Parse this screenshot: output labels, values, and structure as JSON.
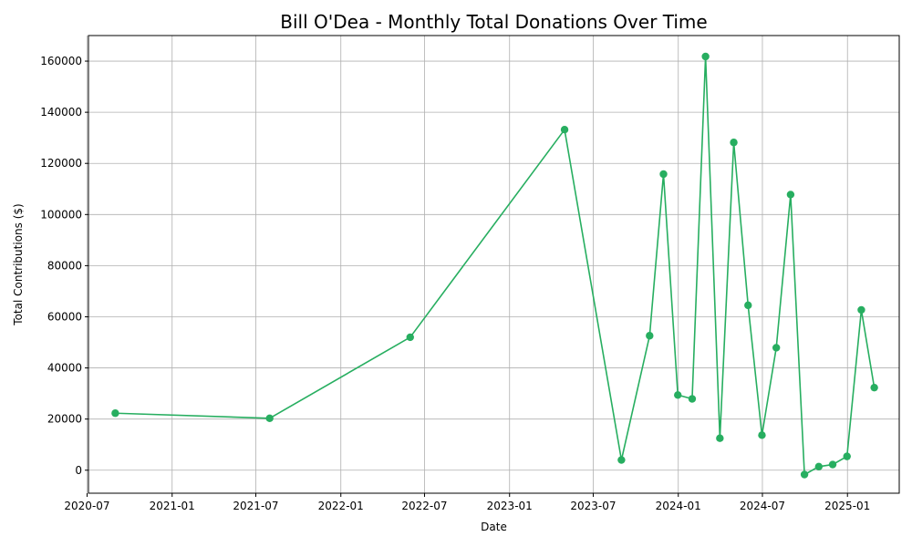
{
  "chart_data": {
    "type": "line",
    "title": "Bill O'Dea - Monthly Total Donations Over Time",
    "xlabel": "Date",
    "ylabel": "Total Contributions ($)",
    "color": "#27ae60",
    "grid": true,
    "xlim": [
      "2020-07-04",
      "2025-04-23"
    ],
    "ylim": [
      -9000,
      170000
    ],
    "x_ticks": [
      "2020-07",
      "2021-01",
      "2021-07",
      "2022-01",
      "2022-07",
      "2023-01",
      "2023-07",
      "2024-01",
      "2024-07",
      "2025-01"
    ],
    "y_ticks": [
      0,
      20000,
      40000,
      60000,
      80000,
      100000,
      120000,
      140000,
      160000
    ],
    "points": [
      {
        "date": "2020-08-31",
        "value": 22300
      },
      {
        "date": "2021-07-31",
        "value": 20300
      },
      {
        "date": "2022-05-31",
        "value": 52000
      },
      {
        "date": "2023-04-30",
        "value": 133200
      },
      {
        "date": "2023-08-31",
        "value": 4000
      },
      {
        "date": "2023-10-31",
        "value": 52600
      },
      {
        "date": "2023-11-30",
        "value": 115800
      },
      {
        "date": "2023-12-31",
        "value": 29400
      },
      {
        "date": "2024-01-31",
        "value": 27900
      },
      {
        "date": "2024-02-29",
        "value": 161800
      },
      {
        "date": "2024-03-31",
        "value": 12500
      },
      {
        "date": "2024-04-30",
        "value": 128200
      },
      {
        "date": "2024-05-31",
        "value": 64500
      },
      {
        "date": "2024-06-30",
        "value": 13700
      },
      {
        "date": "2024-07-31",
        "value": 47900
      },
      {
        "date": "2024-08-31",
        "value": 107800
      },
      {
        "date": "2024-09-30",
        "value": -1700
      },
      {
        "date": "2024-10-31",
        "value": 1400
      },
      {
        "date": "2024-11-30",
        "value": 2200
      },
      {
        "date": "2024-12-31",
        "value": 5400
      },
      {
        "date": "2025-01-31",
        "value": 62700
      },
      {
        "date": "2025-02-28",
        "value": 32300
      }
    ]
  }
}
